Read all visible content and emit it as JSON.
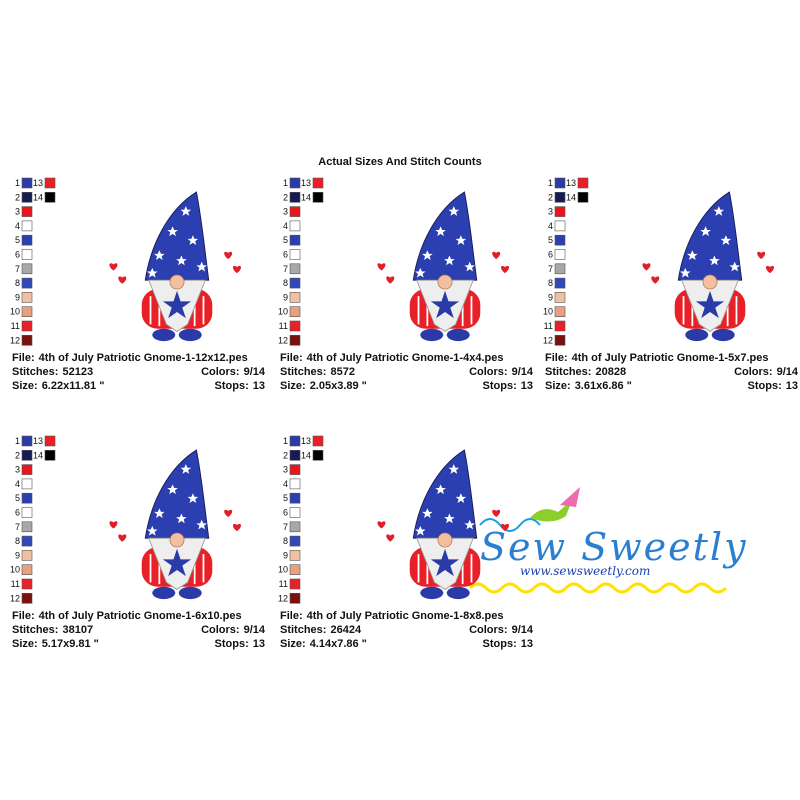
{
  "header": {
    "title": "Actual Sizes And Stitch Counts"
  },
  "labels": {
    "file": "File:",
    "stitches": "Stitches:",
    "colors": "Colors:",
    "size": "Size:",
    "stops": "Stops:"
  },
  "palette": [
    {
      "number": 1,
      "color": "#2a3aa6"
    },
    {
      "number": 2,
      "color": "#161a55"
    },
    {
      "number": 3,
      "color": "#e8141e"
    },
    {
      "number": 4,
      "color": "#ffffff"
    },
    {
      "number": 5,
      "color": "#2c3fb0"
    },
    {
      "number": 6,
      "color": "#ffffff"
    },
    {
      "number": 7,
      "color": "#a8a8a8"
    },
    {
      "number": 8,
      "color": "#3048b8"
    },
    {
      "number": 9,
      "color": "#f2c0a0"
    },
    {
      "number": 10,
      "color": "#e8a080"
    },
    {
      "number": 11,
      "color": "#e82028"
    },
    {
      "number": 12,
      "color": "#7a1010"
    },
    {
      "number": 13,
      "color": "#ee1c24"
    },
    {
      "number": 14,
      "color": "#000000"
    }
  ],
  "designs": [
    {
      "file": "4th of July Patriotic Gnome-1-12x12.pes",
      "stitches": 52123,
      "colors": "9/14",
      "size": "6.22x11.81 \"",
      "stops": 13
    },
    {
      "file": "4th of July Patriotic Gnome-1-4x4.pes",
      "stitches": 8572,
      "colors": "9/14",
      "size": "2.05x3.89 \"",
      "stops": 13
    },
    {
      "file": "4th of July Patriotic Gnome-1-5x7.pes",
      "stitches": 20828,
      "colors": "9/14",
      "size": "3.61x6.86 \"",
      "stops": 13
    },
    {
      "file": "4th of July Patriotic Gnome-1-6x10.pes",
      "stitches": 38107,
      "colors": "9/14",
      "size": "5.17x9.81 \"",
      "stops": 13
    },
    {
      "file": "4th of July Patriotic Gnome-1-8x8.pes",
      "stitches": 26424,
      "colors": "9/14",
      "size": "4.14x7.86 \"",
      "stops": 13
    }
  ],
  "logo": {
    "name": "Sew Sweetly",
    "url": "www.sewsweetly.com"
  }
}
